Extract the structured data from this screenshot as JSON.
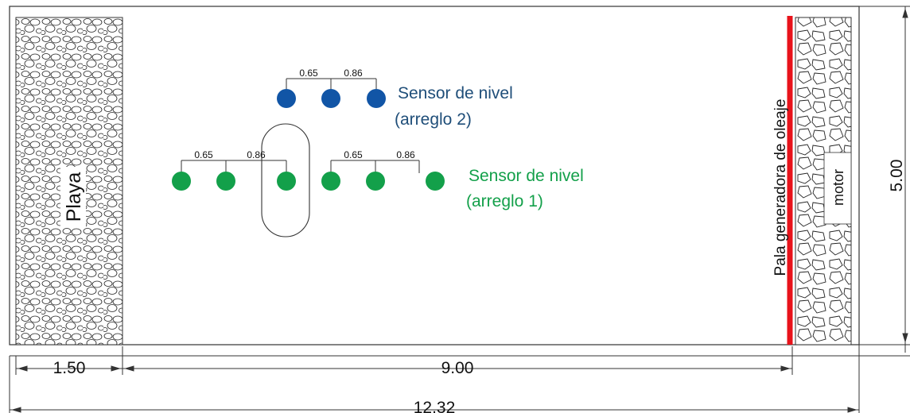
{
  "diagram": {
    "beach_label": "Playa",
    "paddle_label": "Pala generadora de oleaje",
    "motor_label": "motor",
    "dimensions": {
      "beach_width": "1.50",
      "channel_length": "9.00",
      "total_length": "12.32",
      "width": "5.00"
    },
    "array2": {
      "label_line1": "Sensor de nivel",
      "label_line2": "(arreglo 2)",
      "color": "#1155a6",
      "spacings": [
        "0.65",
        "0.86"
      ]
    },
    "array1": {
      "label_line1": "Sensor de nivel",
      "label_line2": "(arreglo 1)",
      "color": "#13a04a",
      "left_spacings": [
        "0.65",
        "0.86"
      ],
      "right_spacings": [
        "0.65",
        "0.86"
      ]
    },
    "colors": {
      "paddle": "#e8131b",
      "outline": "#333333"
    }
  }
}
